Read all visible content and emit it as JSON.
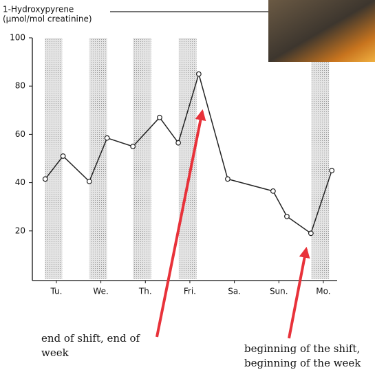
{
  "chart_data": {
    "type": "line",
    "ylabel": [
      "1-Hydroxypyrene",
      "(µmol/mol creatinine)"
    ],
    "x": [
      0.75,
      1.15,
      1.74,
      2.14,
      2.72,
      3.32,
      3.74,
      4.2,
      4.85,
      5.87,
      6.18,
      6.72,
      7.19
    ],
    "series": [
      {
        "color": "#222222",
        "values": [
          41.5,
          51,
          40.5,
          58.5,
          55,
          67,
          56.5,
          85,
          41.5,
          36.5,
          26,
          19,
          45
        ]
      }
    ],
    "shifts": [
      [
        0.74,
        1.13
      ],
      [
        1.74,
        2.14
      ],
      [
        2.72,
        3.13
      ],
      [
        3.75,
        4.15
      ],
      [
        6.73,
        7.13
      ]
    ],
    "xlim": [
      0.46,
      7.31
    ],
    "xticks": [
      {
        "value": 1,
        "label": "Tu."
      },
      {
        "value": 2,
        "label": "We."
      },
      {
        "value": 3,
        "label": "Th."
      },
      {
        "value": 4,
        "label": "Fri."
      },
      {
        "value": 5,
        "label": "Sa."
      },
      {
        "value": 6,
        "label": "Sun."
      },
      {
        "value": 7,
        "label": "Mo."
      }
    ],
    "ylim": [
      0,
      100
    ],
    "yticks": [
      20,
      40,
      60,
      80,
      100
    ],
    "annotations": [
      [
        "end of shift, end of",
        "week"
      ],
      [
        "beginning of the shift,",
        "beginning of the week"
      ]
    ]
  }
}
